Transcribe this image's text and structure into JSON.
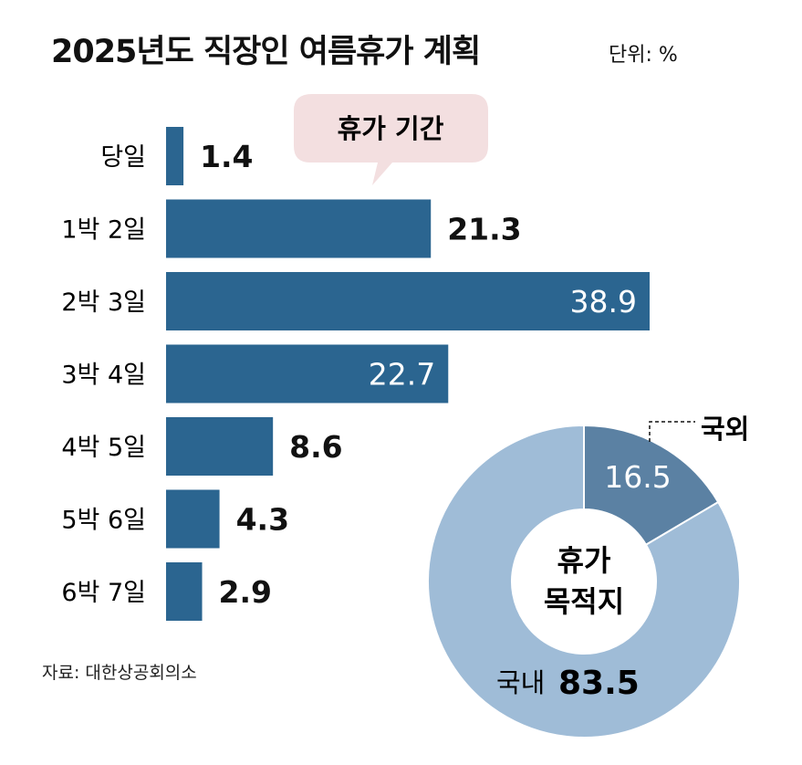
{
  "title": "2025년도 직장인 여름휴가 계획",
  "unit": "단위: %",
  "source": "자료: 대한상공회의소",
  "colors": {
    "bar": "#2b6590",
    "domestic": "#9fbcd7",
    "overseas": "#5b81a3",
    "callout": "#f3dfe0"
  },
  "chart_data": [
    {
      "type": "bar",
      "orientation": "horizontal",
      "title": "휴가 기간",
      "categories": [
        "당일",
        "1박 2일",
        "2박 3일",
        "3박 4일",
        "4박 5일",
        "5박 6일",
        "6박 7일"
      ],
      "values": [
        1.4,
        21.3,
        38.9,
        22.7,
        8.6,
        4.3,
        2.9
      ],
      "labels": [
        "1.4",
        "21.3",
        "38.9",
        "22.7",
        "8.6",
        "4.3",
        "2.9"
      ],
      "xlim": [
        0,
        40
      ]
    },
    {
      "type": "pie",
      "donut": true,
      "title": "휴가 목적지",
      "center_lines": [
        "휴가",
        "목적지"
      ],
      "slices": [
        {
          "name": "국외",
          "value": 16.5,
          "label": "16.5"
        },
        {
          "name": "국내",
          "value": 83.5,
          "label": "83.5"
        }
      ]
    }
  ]
}
